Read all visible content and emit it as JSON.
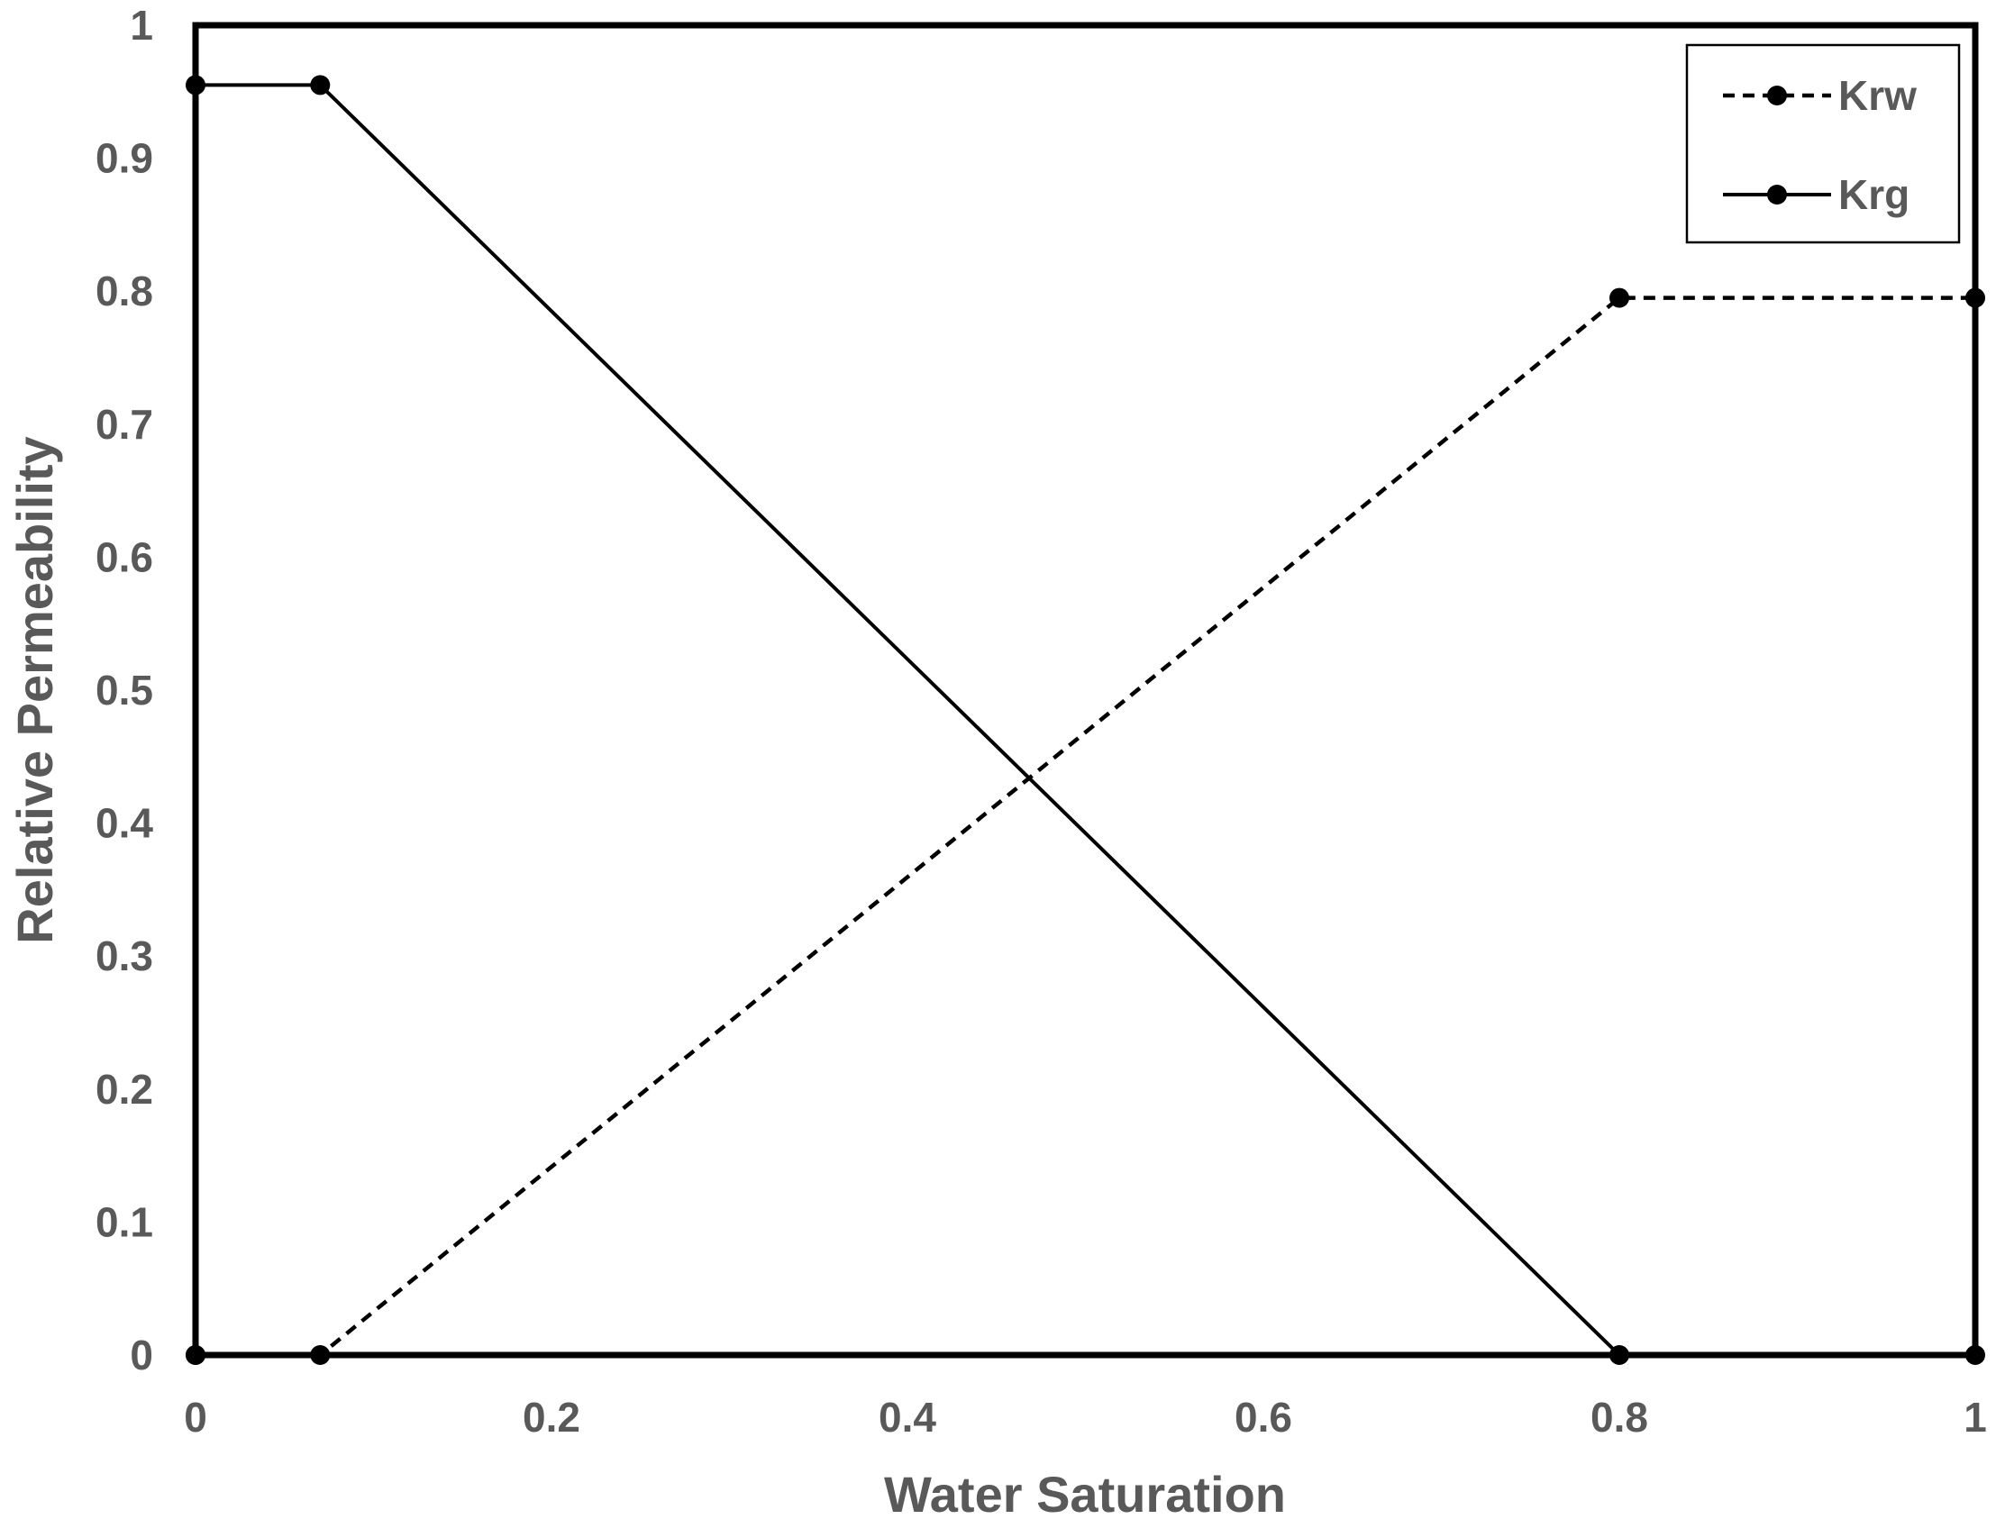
{
  "chart_data": {
    "type": "line",
    "title": "",
    "xlabel": "Water Saturation",
    "ylabel": "Relative Permeability",
    "xlim": [
      0,
      1
    ],
    "ylim": [
      0,
      1
    ],
    "x_ticks": [
      "0",
      "0.2",
      "0.4",
      "0.6",
      "0.8",
      "1"
    ],
    "y_ticks": [
      "0",
      "0.1",
      "0.2",
      "0.3",
      "0.4",
      "0.5",
      "0.6",
      "0.7",
      "0.8",
      "0.9",
      "1"
    ],
    "grid": false,
    "legend_position": "top-right",
    "series": [
      {
        "name": "Krw",
        "style": "dashed",
        "marker": "circle",
        "color": "#000000",
        "x": [
          0,
          0.07,
          0.8,
          1
        ],
        "y": [
          0,
          0,
          0.795,
          0.795
        ]
      },
      {
        "name": "Krg",
        "style": "solid",
        "marker": "circle",
        "color": "#000000",
        "x": [
          0,
          0,
          0.07,
          0.8,
          1
        ],
        "y": [
          0,
          0.955,
          0.955,
          0,
          0
        ]
      }
    ]
  }
}
